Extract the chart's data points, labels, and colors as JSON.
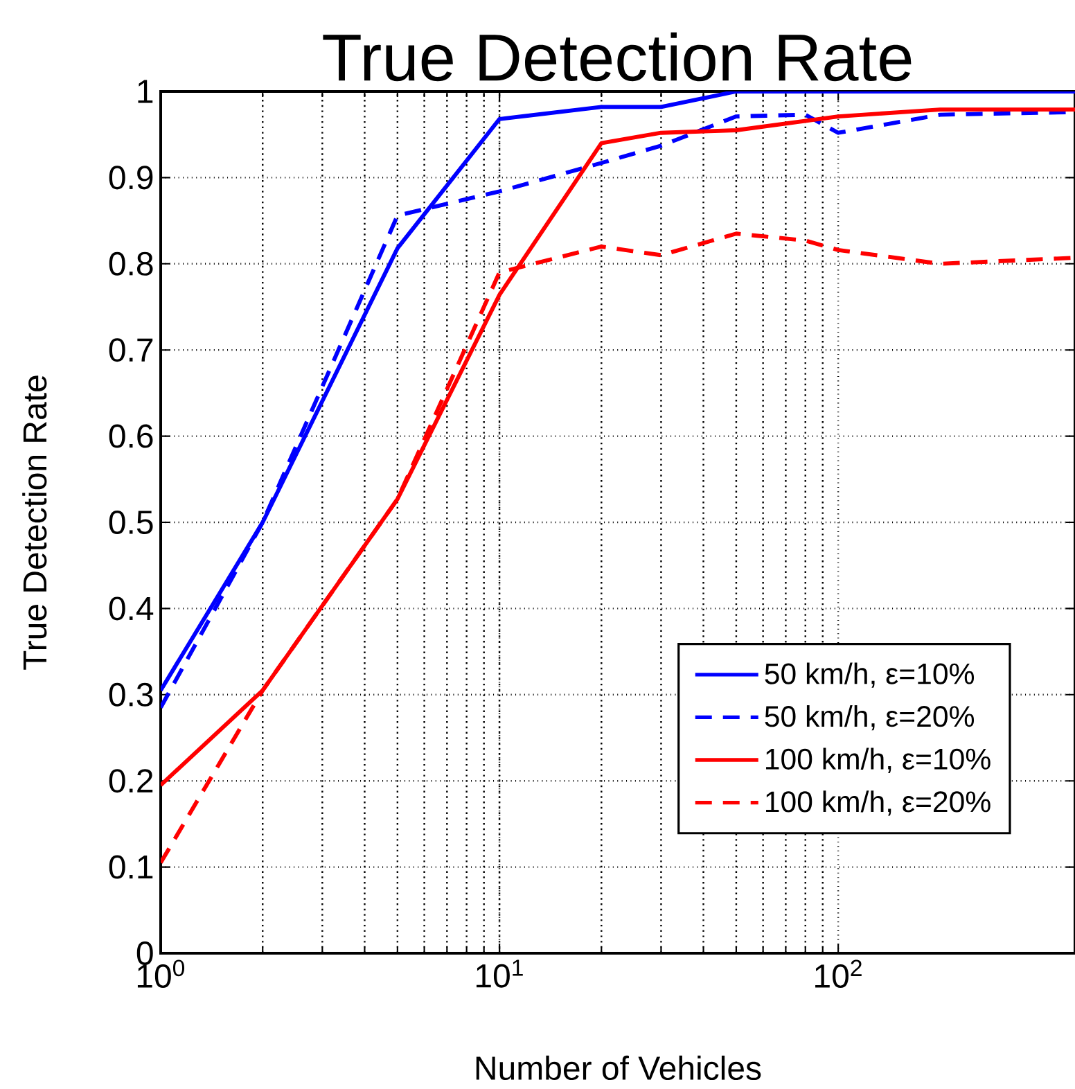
{
  "chart_data": {
    "type": "line",
    "title": "True Detection Rate",
    "xlabel": "Number of Vehicles",
    "ylabel": "True Detection Rate",
    "log": "x",
    "grid": true,
    "legend": "bottom right",
    "marker": "none",
    "xlim": [
      1,
      500
    ],
    "ylim": [
      0,
      1
    ],
    "xticks": [
      {
        "value": 1,
        "label": "10$^{0}$"
      },
      {
        "value": 10,
        "label": "10$^{1}$"
      },
      {
        "value": 100,
        "label": "10$^{2}$"
      }
    ],
    "yticks": [
      0,
      0.1,
      0.2,
      0.3,
      0.4,
      0.5,
      0.6,
      0.7,
      0.8,
      0.9,
      1
    ],
    "series": [
      {
        "name": "50 km/h, ε=10%",
        "color": "#0000ff",
        "line_style": "solid",
        "x": [
          1,
          2,
          5,
          10,
          20,
          30,
          50,
          100,
          200,
          500
        ],
        "values": [
          0.305,
          0.5,
          0.818,
          0.968,
          0.982,
          0.982,
          1,
          1,
          1,
          1
        ]
      },
      {
        "name": "50 km/h, ε=20%",
        "color": "#0000ff",
        "line_style": "dashed",
        "x": [
          1,
          2,
          5,
          10,
          20,
          30,
          50,
          80,
          100,
          200,
          500
        ],
        "values": [
          0.285,
          0.5,
          0.856,
          0.884,
          0.917,
          0.937,
          0.971,
          0.973,
          0.952,
          0.973,
          0.976
        ]
      },
      {
        "name": "100 km/h, ε=10%",
        "color": "#ff0000",
        "line_style": "solid",
        "x": [
          1,
          2,
          5,
          10,
          20,
          30,
          50,
          100,
          200,
          500
        ],
        "values": [
          0.195,
          0.305,
          0.527,
          0.764,
          0.94,
          0.952,
          0.955,
          0.971,
          0.979,
          0.979
        ]
      },
      {
        "name": "100 km/h, ε=20%",
        "color": "#ff0000",
        "line_style": "dashed",
        "x": [
          1,
          2,
          5,
          10,
          20,
          30,
          50,
          80,
          100,
          200,
          500
        ],
        "values": [
          0.105,
          0.305,
          0.527,
          0.79,
          0.82,
          0.81,
          0.835,
          0.827,
          0.816,
          0.8,
          0.807
        ]
      }
    ]
  }
}
